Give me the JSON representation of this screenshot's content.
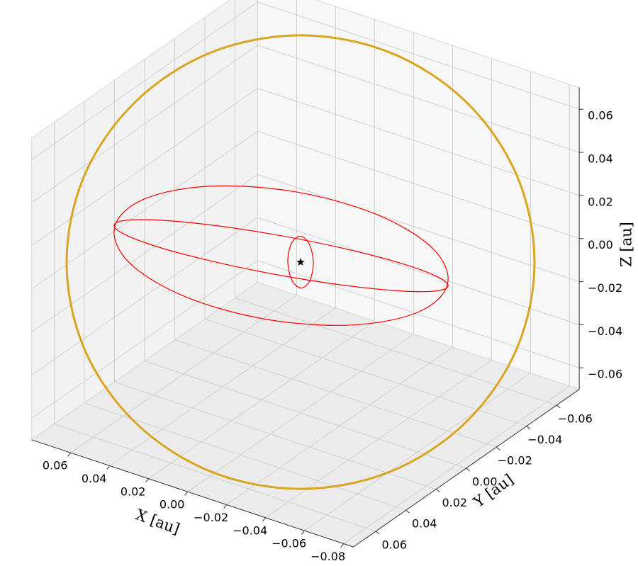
{
  "chart_data": {
    "type": "line3d",
    "xlabel": "X [au]",
    "ylabel": "Y [au]",
    "zlabel": "Z [au]",
    "xlim": [
      -0.085,
      0.08
    ],
    "ylim": [
      -0.075,
      0.075
    ],
    "zlim": [
      -0.07,
      0.07
    ],
    "xticks": [
      {
        "value": -0.08,
        "label": "−0.08"
      },
      {
        "value": -0.06,
        "label": "−0.06"
      },
      {
        "value": -0.04,
        "label": "−0.04"
      },
      {
        "value": -0.02,
        "label": "−0.02"
      },
      {
        "value": 0,
        "label": "0.00"
      },
      0.02,
      0.04,
      0.06
    ],
    "yticks": [
      {
        "value": -0.06,
        "label": "−0.06"
      },
      {
        "value": -0.04,
        "label": "−0.04"
      },
      {
        "value": -0.02,
        "label": "−0.02"
      },
      {
        "value": 0,
        "label": "0.00"
      },
      0.02,
      0.04,
      0.06
    ],
    "zticks": [
      {
        "value": -0.06,
        "label": "−0.06"
      },
      {
        "value": -0.04,
        "label": "−0.04"
      },
      {
        "value": -0.02,
        "label": "−0.02"
      },
      {
        "value": 0,
        "label": "0.00"
      },
      0.02,
      0.04,
      0.06
    ],
    "grid": true,
    "series": [
      {
        "color": "#ff0000",
        "x": [
          -0.0619,
          -0.0496,
          -0.0213,
          0.0154,
          0.0507,
          0.075,
          0.0819,
          0.0696,
          0.0413,
          0.0046,
          -0.0307,
          -0.055
        ],
        "y": [
          -0.0175,
          -0.0234,
          -0.023,
          -0.0164,
          -0.0054,
          0.007,
          0.0175,
          0.0234,
          0.023,
          0.0164,
          0.0054,
          -0.007
        ],
        "z": [
          0,
          0.01,
          0.0173,
          0.02,
          0.0173,
          0.01,
          0,
          -0.01,
          -0.0173,
          -0.02,
          -0.0173,
          -0.01
        ]
      },
      {
        "color": "#ff0000",
        "x": [
          -0.0619,
          -0.0496,
          -0.0213,
          0.0154,
          0.0507,
          0.075,
          0.0819,
          0.0696,
          0.0413,
          0.0046,
          -0.0307,
          -0.055
        ],
        "y": [
          -0.0175,
          -0.0234,
          -0.023,
          -0.0164,
          -0.0054,
          0.007,
          0.0175,
          0.0234,
          0.023,
          0.0164,
          0.0054,
          -0.007
        ],
        "z": [
          0,
          -0.01,
          -0.0173,
          -0.02,
          -0.0173,
          -0.01,
          0,
          0.01,
          0.0173,
          0.02,
          0.0173,
          0.01
        ]
      },
      {
        "color": "#ff0000",
        "x": [
          0,
          -0.0035,
          -0.005,
          -0.0035,
          0,
          0.0035,
          0.005,
          0.0035
        ],
        "y": [
          0,
          -0.0014,
          -0.002,
          -0.0014,
          0,
          0.0014,
          0.002,
          0.0014
        ],
        "z": [
          0.012,
          0.0085,
          0,
          -0.0085,
          -0.012,
          -0.0085,
          0,
          0.0085
        ]
      },
      {
        "color": "#daa520",
        "x": [
          -0.0812,
          -0.0632,
          -0.0356,
          -0.0025,
          0.0309,
          0.0597,
          0.0792,
          0.0868,
          0.0812,
          0.0632,
          0.0356,
          0.0025,
          -0.0309,
          -0.0597,
          -0.0792,
          -0.0868
        ],
        "y": [
          -0.0502,
          -0.0617,
          -0.0638,
          -0.0562,
          -0.04,
          -0.0178,
          0.0072,
          0.0311,
          0.0502,
          0.0617,
          0.0638,
          0.0562,
          0.04,
          0.0178,
          -0.0072,
          -0.0311
        ],
        "z": [
          0,
          0.0293,
          0.054,
          0.0706,
          0.0764,
          0.0706,
          0.054,
          0.0293,
          0,
          -0.0293,
          -0.054,
          -0.0706,
          -0.0764,
          -0.0706,
          -0.054,
          -0.0293
        ]
      },
      {
        "color": "#000000",
        "marker": "*",
        "x": [
          0
        ],
        "y": [
          0
        ],
        "z": [
          0
        ]
      }
    ]
  }
}
